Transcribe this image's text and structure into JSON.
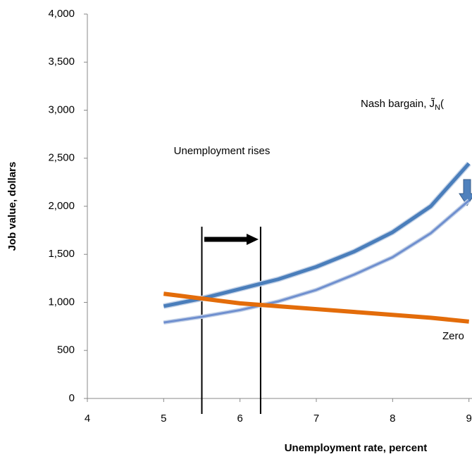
{
  "chart_data": {
    "type": "line",
    "x": [
      5,
      5.5,
      6,
      6.5,
      7,
      7.5,
      8,
      8.5,
      9
    ],
    "series": [
      {
        "color": "#4a7ebb",
        "values": [
          960,
          1040,
          1140,
          1240,
          1370,
          1530,
          1730,
          2000,
          2445
        ]
      },
      {
        "color": "#6f8fcf",
        "values": [
          790,
          850,
          920,
          1010,
          1130,
          1290,
          1470,
          1720,
          2060
        ]
      },
      {
        "color": "#e36c0a",
        "values": [
          1090,
          1040,
          990,
          960,
          930,
          900,
          870,
          840,
          800
        ]
      }
    ],
    "markers": [
      5.5,
      6.27
    ],
    "xlim": [
      4,
      9.04
    ],
    "xticks": [
      4,
      5,
      6,
      7,
      8,
      9
    ],
    "ylim": [
      0,
      4000
    ],
    "yticks": [
      0,
      500,
      {
        "value": 1000,
        "label": "1,000"
      },
      {
        "value": 1500,
        "label": "1,500"
      },
      {
        "value": 2000,
        "label": "2,000"
      },
      {
        "value": 2500,
        "label": "2,500"
      },
      {
        "value": 3000,
        "label": "3,000"
      },
      {
        "value": 3500,
        "label": "3,500"
      },
      {
        "value": 4000,
        "label": "4,000"
      }
    ],
    "x_label": "Unemployment rate, percent",
    "y_label": "Job value, dollars",
    "annotations": [
      "Unemployment rises",
      "Nash bargain, J̃",
      "N",
      "(",
      "Zero"
    ]
  }
}
